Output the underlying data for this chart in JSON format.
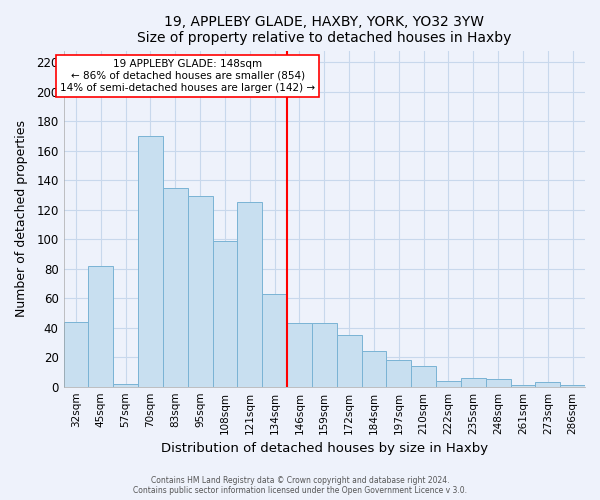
{
  "title": "19, APPLEBY GLADE, HAXBY, YORK, YO32 3YW",
  "subtitle": "Size of property relative to detached houses in Haxby",
  "xlabel": "Distribution of detached houses by size in Haxby",
  "ylabel": "Number of detached properties",
  "bin_labels": [
    "32sqm",
    "45sqm",
    "57sqm",
    "70sqm",
    "83sqm",
    "95sqm",
    "108sqm",
    "121sqm",
    "134sqm",
    "146sqm",
    "159sqm",
    "172sqm",
    "184sqm",
    "197sqm",
    "210sqm",
    "222sqm",
    "235sqm",
    "248sqm",
    "261sqm",
    "273sqm",
    "286sqm"
  ],
  "bar_heights": [
    44,
    82,
    2,
    170,
    135,
    129,
    99,
    125,
    63,
    43,
    43,
    35,
    24,
    18,
    14,
    4,
    6,
    5,
    1,
    3,
    1
  ],
  "bar_color": "#c8dff0",
  "bar_edge_color": "#7ab3d4",
  "vline_color": "red",
  "annotation_title": "19 APPLEBY GLADE: 148sqm",
  "annotation_line1": "← 86% of detached houses are smaller (854)",
  "annotation_line2": "14% of semi-detached houses are larger (142) →",
  "annotation_box_color": "white",
  "annotation_box_edge": "red",
  "ylim": [
    0,
    228
  ],
  "yticks": [
    0,
    20,
    40,
    60,
    80,
    100,
    120,
    140,
    160,
    180,
    200,
    220
  ],
  "footer1": "Contains HM Land Registry data © Crown copyright and database right 2024.",
  "footer2": "Contains public sector information licensed under the Open Government Licence v 3.0.",
  "bg_color": "#eef2fb"
}
